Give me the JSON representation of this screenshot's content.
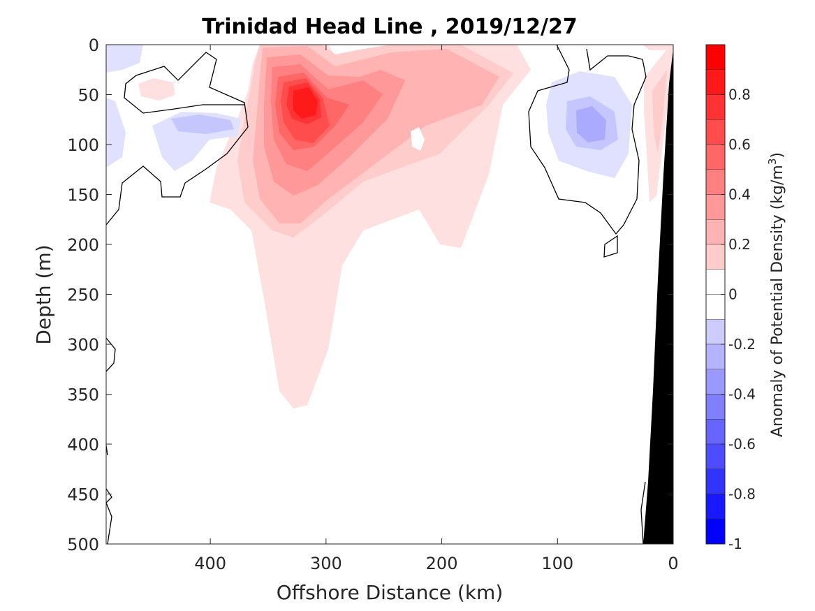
{
  "chart_data": {
    "type": "heatmap",
    "title": "Trinidad Head Line , 2019/12/27",
    "xlabel": "Offshore Distance (km)",
    "ylabel": "Depth (m)",
    "colorbar_label_prefix": "Anomaly of Potential Density (kg/m",
    "colorbar_label_exponent": "3",
    "colorbar_label_suffix": ")",
    "x_reversed": true,
    "y_reversed": true,
    "xlim": [
      0,
      490
    ],
    "ylim": [
      0,
      500
    ],
    "x_ticks": [
      400,
      300,
      200,
      100,
      0
    ],
    "y_ticks": [
      0,
      50,
      100,
      150,
      200,
      250,
      300,
      350,
      400,
      450,
      500
    ],
    "colorbar_range": [
      -1,
      1
    ],
    "colorbar_ticks": [
      0.8,
      0.6,
      0.4,
      0.2,
      0,
      -0.2,
      -0.4,
      -0.6,
      -0.8,
      -1
    ],
    "colorbar_levels": [
      0.9,
      0.8,
      0.7,
      0.6,
      0.5,
      0.4,
      0.3,
      0.2,
      0.1,
      -0.1,
      -0.2,
      -0.3,
      -0.4,
      -0.5,
      -0.6,
      -0.7,
      -0.8,
      -0.9
    ],
    "colormap": "blue-white-red",
    "zero_contour": true,
    "bathymetry_color": "#000000",
    "features": [
      {
        "kind": "positive-anomaly",
        "center_km": 320,
        "center_depth_m": 60,
        "peak": 0.9
      },
      {
        "kind": "positive-anomaly",
        "center_km": 240,
        "center_depth_m": 50,
        "peak": 0.3
      },
      {
        "kind": "negative-anomaly",
        "center_km": 75,
        "center_depth_m": 80,
        "peak": -0.25
      },
      {
        "kind": "negative-anomaly",
        "center_km": 420,
        "center_depth_m": 80,
        "peak": -0.15
      }
    ]
  }
}
